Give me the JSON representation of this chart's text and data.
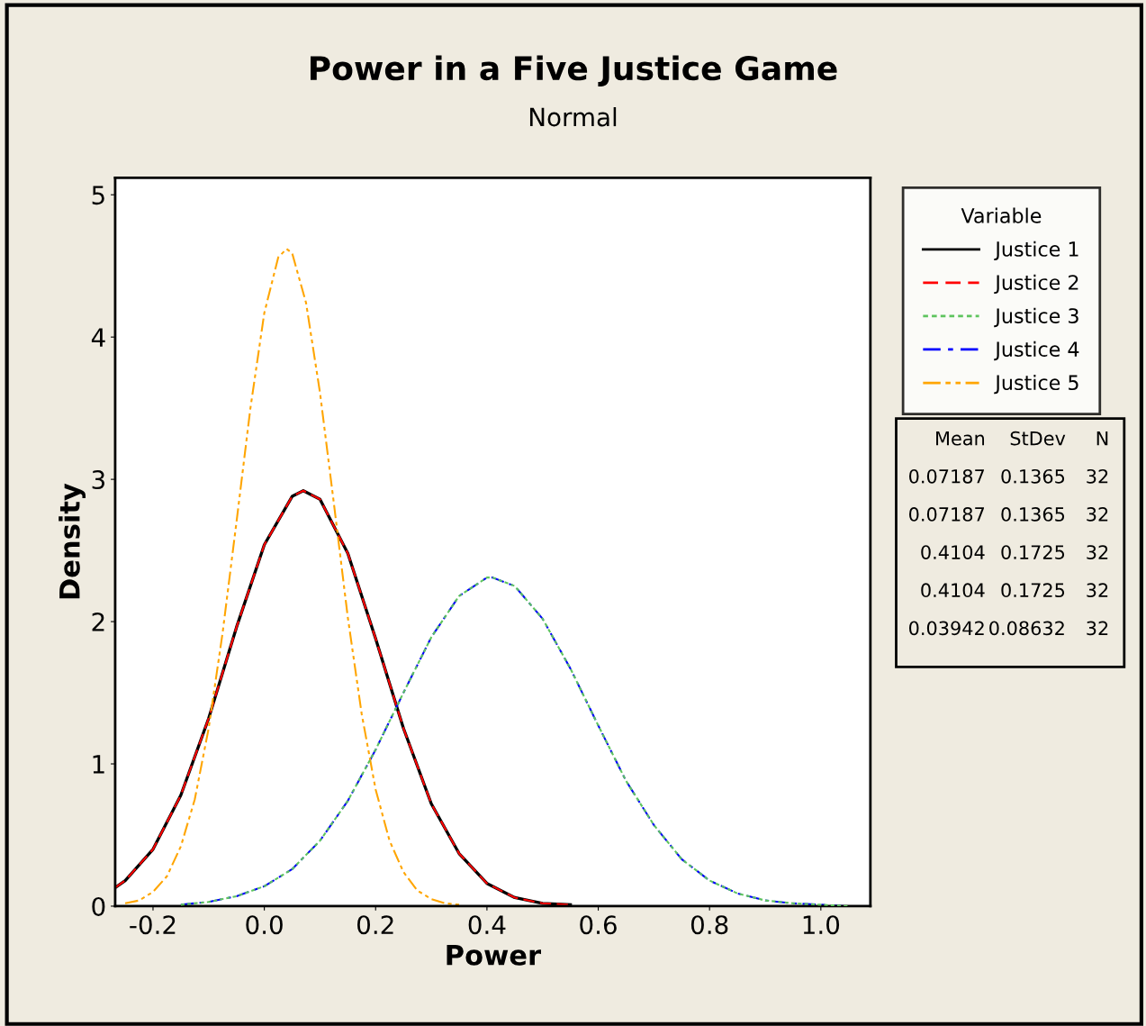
{
  "chart_data": {
    "type": "line",
    "title": "Power in a Five Justice Game",
    "subtitle": "Normal",
    "xlabel": "Power",
    "ylabel": "Density",
    "legend_title": "Variable",
    "xlim": [
      -0.268,
      1.089
    ],
    "ylim": [
      0,
      5.12
    ],
    "xticks": [
      -0.2,
      {
        "value": 0,
        "label": "0.0"
      },
      0.2,
      0.4,
      0.6,
      0.8,
      {
        "value": 1,
        "label": "1.0"
      }
    ],
    "yticks": [
      0,
      1,
      2,
      3,
      4,
      5
    ],
    "grid": false,
    "legend": "right",
    "marker": "none",
    "series": [
      {
        "name": "Justice 1",
        "color": "#000000",
        "line_style": "solid",
        "x": [
          -0.268,
          -0.25,
          -0.2,
          -0.15,
          -0.1,
          -0.05,
          0,
          0.05,
          0.07,
          0.1,
          0.15,
          0.2,
          0.25,
          0.3,
          0.35,
          0.4,
          0.45,
          0.5,
          0.55
        ],
        "values": [
          0.13,
          0.18,
          0.4,
          0.78,
          1.32,
          1.96,
          2.54,
          2.88,
          2.92,
          2.86,
          2.48,
          1.88,
          1.25,
          0.72,
          0.37,
          0.16,
          0.06,
          0.02,
          0.01
        ]
      },
      {
        "name": "Justice 2",
        "color": "#ff0000",
        "line_style": "dashed",
        "x": [
          -0.268,
          -0.25,
          -0.2,
          -0.15,
          -0.1,
          -0.05,
          0,
          0.05,
          0.07,
          0.1,
          0.15,
          0.2,
          0.25,
          0.3,
          0.35,
          0.4,
          0.45,
          0.5,
          0.55
        ],
        "values": [
          0.13,
          0.18,
          0.4,
          0.78,
          1.32,
          1.96,
          2.54,
          2.88,
          2.92,
          2.86,
          2.48,
          1.88,
          1.25,
          0.72,
          0.37,
          0.16,
          0.06,
          0.02,
          0.01
        ]
      },
      {
        "name": "Justice 3",
        "color": "#5ec45e",
        "line_style": "dotted",
        "x": [
          -0.15,
          -0.1,
          -0.05,
          0,
          0.05,
          0.1,
          0.15,
          0.2,
          0.25,
          0.3,
          0.35,
          0.4,
          0.41,
          0.45,
          0.5,
          0.55,
          0.6,
          0.65,
          0.7,
          0.75,
          0.8,
          0.85,
          0.9,
          0.95,
          1.0,
          1.05
        ],
        "values": [
          0.01,
          0.03,
          0.07,
          0.14,
          0.26,
          0.46,
          0.74,
          1.1,
          1.5,
          1.89,
          2.18,
          2.31,
          2.31,
          2.25,
          2.02,
          1.67,
          1.27,
          0.88,
          0.57,
          0.33,
          0.18,
          0.09,
          0.04,
          0.02,
          0.01,
          0.0
        ]
      },
      {
        "name": "Justice 4",
        "color": "#0000ff",
        "line_style": "dashdot",
        "x": [
          -0.15,
          -0.1,
          -0.05,
          0,
          0.05,
          0.1,
          0.15,
          0.2,
          0.25,
          0.3,
          0.35,
          0.4,
          0.41,
          0.45,
          0.5,
          0.55,
          0.6,
          0.65,
          0.7,
          0.75,
          0.8,
          0.85,
          0.9,
          0.95,
          1.0,
          1.05
        ],
        "values": [
          0.01,
          0.03,
          0.07,
          0.14,
          0.26,
          0.46,
          0.74,
          1.1,
          1.5,
          1.89,
          2.18,
          2.31,
          2.31,
          2.25,
          2.02,
          1.67,
          1.27,
          0.88,
          0.57,
          0.33,
          0.18,
          0.09,
          0.04,
          0.02,
          0.01,
          0.0
        ]
      },
      {
        "name": "Justice 5",
        "color": "#ffa500",
        "line_style": "dashdotdot",
        "x": [
          -0.25,
          -0.225,
          -0.2,
          -0.175,
          -0.15,
          -0.125,
          -0.1,
          -0.075,
          -0.05,
          -0.025,
          0,
          0.025,
          0.04,
          0.05,
          0.075,
          0.1,
          0.125,
          0.15,
          0.175,
          0.2,
          0.225,
          0.25,
          0.275,
          0.3,
          0.325,
          0.35
        ],
        "values": [
          0.02,
          0.04,
          0.1,
          0.21,
          0.42,
          0.75,
          1.25,
          1.92,
          2.7,
          3.5,
          4.17,
          4.56,
          4.62,
          4.59,
          4.24,
          3.61,
          2.83,
          2.03,
          1.35,
          0.82,
          0.46,
          0.24,
          0.11,
          0.05,
          0.02,
          0.01
        ]
      }
    ],
    "annotations": [
      "Mean",
      "StDev",
      "N",
      "0.07187",
      "0.1365",
      "32",
      "0.07187",
      "0.1365",
      "32",
      "0.4104",
      "0.1725",
      "32",
      "0.4104",
      "0.1725",
      "32",
      "0.03942",
      "0.08632",
      "32"
    ]
  }
}
